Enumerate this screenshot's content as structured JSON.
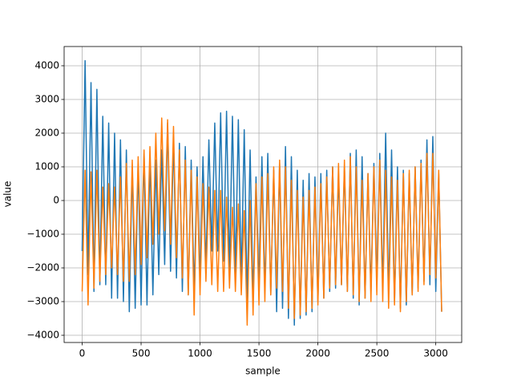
{
  "chart_data": {
    "type": "line",
    "xlabel": "sample",
    "ylabel": "value",
    "x": [
      0,
      25,
      50,
      75,
      100,
      125,
      150,
      175,
      200,
      225,
      250,
      275,
      300,
      325,
      350,
      375,
      400,
      425,
      450,
      475,
      500,
      525,
      550,
      575,
      600,
      625,
      650,
      675,
      700,
      725,
      750,
      775,
      800,
      825,
      850,
      875,
      900,
      925,
      950,
      975,
      1000,
      1025,
      1050,
      1075,
      1100,
      1125,
      1150,
      1175,
      1200,
      1225,
      1250,
      1275,
      1300,
      1325,
      1350,
      1375,
      1400,
      1425,
      1450,
      1475,
      1500,
      1525,
      1550,
      1575,
      1600,
      1625,
      1650,
      1675,
      1700,
      1725,
      1750,
      1775,
      1800,
      1825,
      1850,
      1875,
      1900,
      1925,
      1950,
      1975,
      2000,
      2025,
      2050,
      2075,
      2100,
      2125,
      2150,
      2175,
      2200,
      2225,
      2250,
      2275,
      2300,
      2325,
      2350,
      2375,
      2400,
      2425,
      2450,
      2475,
      2500,
      2525,
      2550,
      2575,
      2600,
      2625,
      2650,
      2675,
      2700,
      2725,
      2750,
      2775,
      2800,
      2825,
      2850,
      2875,
      2900,
      2925,
      2950,
      2975,
      3000,
      3025,
      3050
    ],
    "series": [
      {
        "color": "#1f77b4",
        "values": [
          -1500,
          4150,
          -2200,
          3500,
          -2700,
          3300,
          -2500,
          2500,
          -2500,
          2300,
          -2900,
          2000,
          -2900,
          1800,
          -3000,
          1500,
          -3300,
          1000,
          -3200,
          1100,
          -3100,
          1400,
          -3100,
          1300,
          -2800,
          1200,
          -2200,
          1500,
          -1900,
          2300,
          -2100,
          1800,
          -2300,
          1700,
          -2700,
          1600,
          -2800,
          1200,
          -2700,
          1000,
          -2400,
          1300,
          -2000,
          1800,
          -1500,
          2300,
          -1500,
          2600,
          -1800,
          2650,
          -2100,
          2500,
          -2200,
          2400,
          -2400,
          2100,
          -3000,
          1500,
          -2900,
          700,
          -2600,
          1300,
          -2700,
          1400,
          -2800,
          900,
          -3300,
          1100,
          -3200,
          1600,
          -3500,
          1300,
          -3700,
          900,
          -3500,
          600,
          -3400,
          800,
          -3300,
          700,
          -3000,
          800,
          -2900,
          900,
          -2700,
          1000,
          -2600,
          800,
          -2500,
          1000,
          -2700,
          1400,
          -2900,
          1500,
          -3100,
          1300,
          -2900,
          800,
          -2700,
          1100,
          -2500,
          1400,
          -2600,
          2000,
          -2800,
          1500,
          -3000,
          1000,
          -3200,
          900,
          -3100,
          800,
          -2800,
          1000,
          -2600,
          1200,
          -2400,
          1800,
          -2500,
          1900,
          -2700,
          800,
          -3300
        ]
      },
      {
        "color": "#ff7f0e",
        "values": [
          -2700,
          900,
          -3100,
          850,
          -2600,
          900,
          -2400,
          400,
          -2200,
          500,
          -2000,
          400,
          -2200,
          700,
          -2400,
          1100,
          -2400,
          1200,
          -2200,
          1300,
          -1900,
          1500,
          -1700,
          1600,
          -1300,
          2000,
          -1000,
          2450,
          -900,
          2400,
          -1300,
          2200,
          -1700,
          1500,
          -2300,
          1200,
          -2800,
          900,
          -3400,
          700,
          -2800,
          500,
          -2400,
          400,
          -2500,
          300,
          -2700,
          300,
          -2700,
          100,
          -2600,
          -200,
          -2700,
          -100,
          -2800,
          -300,
          -3700,
          0,
          -3400,
          500,
          -3100,
          700,
          -3000,
          800,
          -2800,
          1000,
          -2600,
          1200,
          -2700,
          1000,
          -3200,
          600,
          -3500,
          300,
          -3400,
          100,
          -3300,
          300,
          -3200,
          400,
          -3100,
          500,
          -2900,
          700,
          -2600,
          1000,
          -2500,
          1100,
          -2500,
          1200,
          -2700,
          1300,
          -2800,
          1000,
          -3000,
          600,
          -2900,
          800,
          -3000,
          1000,
          -2800,
          1200,
          -3000,
          900,
          -3200,
          700,
          -3100,
          600,
          -3300,
          800,
          -3000,
          900,
          -2800,
          1000,
          -2700,
          1100,
          -2500,
          1400,
          -2200,
          1400,
          -2300,
          900,
          -3300
        ]
      }
    ],
    "xlim": [
      -153,
      3220
    ],
    "xticks": [
      0,
      500,
      1000,
      1500,
      2000,
      2500,
      3000
    ],
    "ylim": [
      -4214,
      4571
    ],
    "yticks": [
      {
        "value": -4000,
        "label": "−4000"
      },
      {
        "value": -3000,
        "label": "−3000"
      },
      {
        "value": -2000,
        "label": "−2000"
      },
      {
        "value": -1000,
        "label": "−1000"
      },
      0,
      1000,
      2000,
      3000,
      4000
    ],
    "grid": true
  }
}
